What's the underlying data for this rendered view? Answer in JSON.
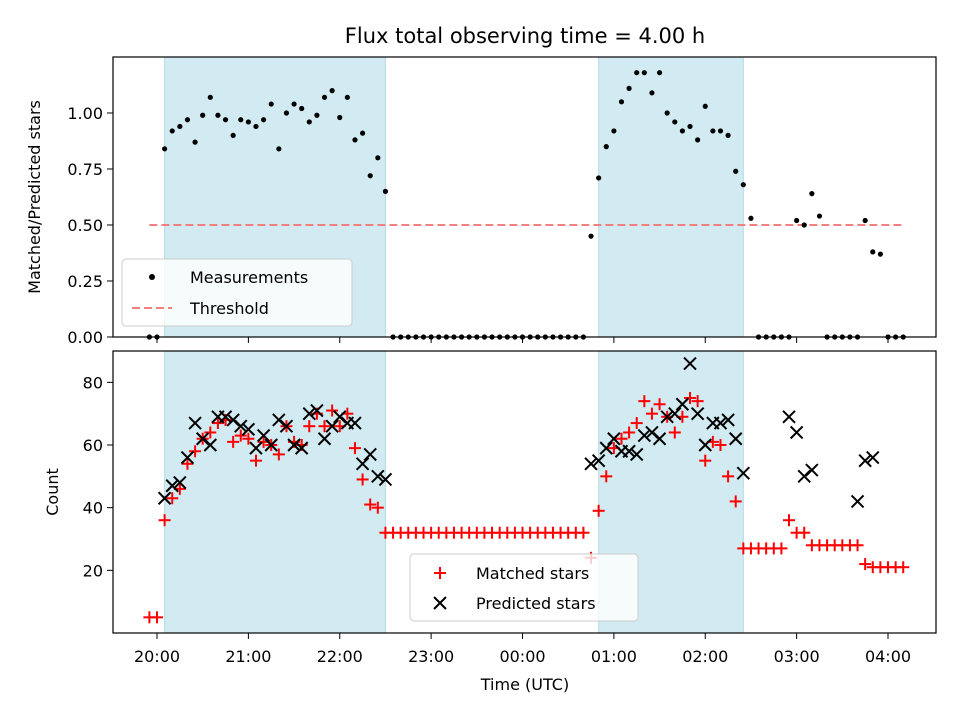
{
  "chart_data": [
    {
      "type": "scatter",
      "title": "Flux total observing time = 4.00 h",
      "xlabel": "",
      "ylabel": "Matched/Predicted stars",
      "ylim": [
        0,
        1.25
      ],
      "y_ticks": [
        "0.00",
        "0.25",
        "0.50",
        "0.75",
        "1.00"
      ],
      "x_tick_labels_visible": false,
      "threshold": {
        "name": "Threshold",
        "value": 0.5,
        "x_start": "19:55",
        "x_end": "04:10",
        "color": "#f08080",
        "style": "dashed"
      },
      "shaded_intervals": [
        [
          "20:05",
          "22:30"
        ],
        [
          "00:50",
          "02:25"
        ]
      ],
      "shade_color": "#add8e6",
      "legend": {
        "placement": "lower-left",
        "entries": [
          "Measurements",
          "Threshold"
        ]
      },
      "series": [
        {
          "name": "Measurements",
          "marker": "dot",
          "color": "#000000",
          "x": [
            "19:55",
            "20:00",
            "20:05",
            "20:10",
            "20:15",
            "20:20",
            "20:25",
            "20:30",
            "20:35",
            "20:40",
            "20:45",
            "20:50",
            "20:55",
            "21:00",
            "21:05",
            "21:10",
            "21:15",
            "21:20",
            "21:25",
            "21:30",
            "21:35",
            "21:40",
            "21:45",
            "21:50",
            "21:55",
            "22:00",
            "22:05",
            "22:10",
            "22:15",
            "22:20",
            "22:25",
            "22:30",
            "22:35",
            "22:40",
            "22:45",
            "22:50",
            "22:55",
            "23:00",
            "23:05",
            "23:10",
            "23:15",
            "23:20",
            "23:25",
            "23:30",
            "23:35",
            "23:40",
            "23:45",
            "23:50",
            "23:55",
            "00:00",
            "00:05",
            "00:10",
            "00:15",
            "00:20",
            "00:25",
            "00:30",
            "00:35",
            "00:40",
            "00:45",
            "00:50",
            "00:55",
            "01:00",
            "01:05",
            "01:10",
            "01:15",
            "01:20",
            "01:25",
            "01:30",
            "01:35",
            "01:40",
            "01:45",
            "01:50",
            "01:55",
            "02:00",
            "02:05",
            "02:10",
            "02:15",
            "02:20",
            "02:25",
            "02:30",
            "02:35",
            "02:40",
            "02:45",
            "02:50",
            "02:55",
            "03:00",
            "03:05",
            "03:10",
            "03:15",
            "03:20",
            "03:25",
            "03:30",
            "03:35",
            "03:40",
            "03:45",
            "03:50",
            "03:55",
            "04:00",
            "04:05",
            "04:10"
          ],
          "y": [
            0,
            0,
            0.84,
            0.92,
            0.94,
            0.97,
            0.87,
            0.99,
            1.07,
            0.99,
            0.97,
            0.9,
            0.97,
            0.96,
            0.94,
            0.97,
            1.04,
            0.84,
            1.0,
            1.04,
            1.02,
            0.96,
            0.99,
            1.07,
            1.1,
            0.98,
            1.07,
            0.88,
            0.91,
            0.72,
            0.8,
            0.65,
            0,
            0,
            0,
            0,
            0,
            0,
            0,
            0,
            0,
            0,
            0,
            0,
            0,
            0,
            0,
            0,
            0,
            0,
            0,
            0,
            0,
            0,
            0,
            0,
            0,
            0,
            0.45,
            0.71,
            0.85,
            0.92,
            1.05,
            1.11,
            1.18,
            1.18,
            1.09,
            1.18,
            1.0,
            0.96,
            0.92,
            0.94,
            0.88,
            1.03,
            0.92,
            0.92,
            0.9,
            0.74,
            0.68,
            0.53,
            0,
            0,
            0,
            0,
            0,
            0.52,
            0.5,
            0.64,
            0.54,
            0,
            0,
            0,
            0,
            0,
            0.52,
            0.38,
            0.37,
            0,
            0,
            0
          ]
        }
      ]
    },
    {
      "type": "scatter",
      "title": "",
      "xlabel": "Time (UTC)",
      "ylabel": "Count",
      "ylim": [
        0,
        90
      ],
      "y_ticks": [
        "20",
        "40",
        "60",
        "80"
      ],
      "x_ticks": [
        "20:00",
        "21:00",
        "22:00",
        "23:00",
        "00:00",
        "01:00",
        "02:00",
        "03:00",
        "04:00"
      ],
      "shaded_intervals": [
        [
          "20:05",
          "22:30"
        ],
        [
          "00:50",
          "02:25"
        ]
      ],
      "shade_color": "#add8e6",
      "legend": {
        "placement": "lower-center",
        "entries": [
          "Matched stars",
          "Predicted stars"
        ]
      },
      "series": [
        {
          "name": "Matched stars",
          "marker": "plus",
          "color": "#ff0000",
          "x": [
            "19:55",
            "20:00",
            "20:05",
            "20:10",
            "20:15",
            "20:20",
            "20:25",
            "20:30",
            "20:35",
            "20:40",
            "20:45",
            "20:50",
            "20:55",
            "21:00",
            "21:05",
            "21:10",
            "21:15",
            "21:20",
            "21:25",
            "21:30",
            "21:35",
            "21:40",
            "21:45",
            "21:50",
            "21:55",
            "22:00",
            "22:05",
            "22:10",
            "22:15",
            "22:20",
            "22:25",
            "22:30",
            "22:35",
            "22:40",
            "22:45",
            "22:50",
            "22:55",
            "23:00",
            "23:05",
            "23:10",
            "23:15",
            "23:20",
            "23:25",
            "23:30",
            "23:35",
            "23:40",
            "23:45",
            "23:50",
            "23:55",
            "00:00",
            "00:05",
            "00:10",
            "00:15",
            "00:20",
            "00:25",
            "00:30",
            "00:35",
            "00:40",
            "00:45",
            "00:50",
            "00:55",
            "01:00",
            "01:05",
            "01:10",
            "01:15",
            "01:20",
            "01:25",
            "01:30",
            "01:35",
            "01:40",
            "01:45",
            "01:50",
            "01:55",
            "02:00",
            "02:05",
            "02:10",
            "02:15",
            "02:20",
            "02:25",
            "02:30",
            "02:35",
            "02:40",
            "02:45",
            "02:50",
            "02:55",
            "03:00",
            "03:05",
            "03:10",
            "03:15",
            "03:20",
            "03:25",
            "03:30",
            "03:35",
            "03:40",
            "03:45",
            "03:50",
            "03:55",
            "04:00",
            "04:05",
            "04:10"
          ],
          "y": [
            5,
            5,
            36,
            43,
            46,
            54,
            58,
            62,
            64,
            67,
            68,
            61,
            63,
            62,
            55,
            61,
            60,
            57,
            66,
            61,
            60,
            66,
            70,
            66,
            71,
            66,
            70,
            59,
            49,
            41,
            40,
            32,
            32,
            32,
            32,
            32,
            32,
            32,
            32,
            32,
            32,
            32,
            32,
            32,
            32,
            32,
            32,
            32,
            32,
            32,
            32,
            32,
            32,
            32,
            32,
            32,
            32,
            32,
            24,
            39,
            50,
            59,
            62,
            64,
            67,
            74,
            70,
            73,
            69,
            64,
            69,
            75,
            74,
            55,
            61,
            60,
            50,
            42,
            27,
            27,
            27,
            27,
            27,
            27,
            36,
            32,
            32,
            28,
            28,
            28,
            28,
            28,
            28,
            28,
            22,
            21,
            21,
            21,
            21,
            21
          ]
        },
        {
          "name": "Predicted stars",
          "marker": "x",
          "color": "#000000",
          "x": [
            "20:05",
            "20:10",
            "20:15",
            "20:20",
            "20:25",
            "20:30",
            "20:35",
            "20:40",
            "20:45",
            "20:50",
            "20:55",
            "21:00",
            "21:05",
            "21:10",
            "21:15",
            "21:20",
            "21:25",
            "21:30",
            "21:35",
            "21:40",
            "21:45",
            "21:50",
            "21:55",
            "22:00",
            "22:05",
            "22:10",
            "22:15",
            "22:20",
            "22:25",
            "22:30",
            "00:45",
            "00:50",
            "00:55",
            "01:00",
            "01:05",
            "01:10",
            "01:15",
            "01:20",
            "01:25",
            "01:30",
            "01:35",
            "01:40",
            "01:45",
            "01:50",
            "01:55",
            "02:00",
            "02:05",
            "02:10",
            "02:15",
            "02:20",
            "02:25",
            "02:55",
            "03:00",
            "03:05",
            "03:10",
            "03:40",
            "03:45",
            "03:50"
          ],
          "y": [
            43,
            47,
            48,
            56,
            67,
            62,
            60,
            69,
            69,
            68,
            66,
            65,
            59,
            63,
            60,
            68,
            66,
            60,
            59,
            70,
            71,
            62,
            66,
            69,
            67,
            67,
            54,
            57,
            50,
            49,
            54,
            55,
            59,
            62,
            58,
            58,
            57,
            63,
            64,
            62,
            69,
            70,
            73,
            86,
            70,
            60,
            67,
            67,
            68,
            62,
            51,
            69,
            64,
            50,
            52,
            42,
            55,
            56
          ]
        }
      ]
    }
  ]
}
